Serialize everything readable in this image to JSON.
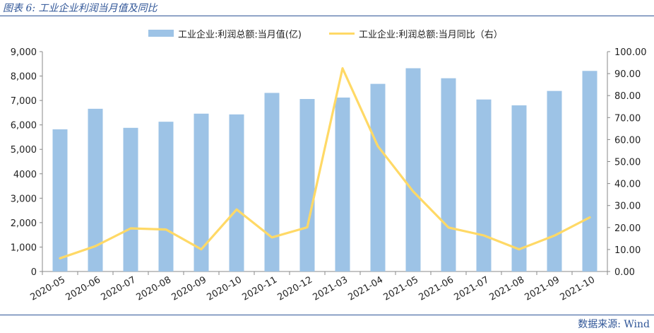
{
  "figure": {
    "title": "图表 6:  工业企业利润当月值及同比",
    "source": "数据来源: Wind"
  },
  "colors": {
    "bar": "#9dc3e6",
    "line": "#ffd966",
    "accent": "#2f5597"
  },
  "chart_data": {
    "type": "bar",
    "categories": [
      "2020-05",
      "2020-06",
      "2020-07",
      "2020-08",
      "2020-09",
      "2020-10",
      "2020-11",
      "2020-12",
      "2021-03",
      "2021-04",
      "2021-05",
      "2021-06",
      "2021-07",
      "2021-08",
      "2021-09",
      "2021-10"
    ],
    "series": [
      {
        "name": "工业企业:利润总额:当月值(亿)",
        "type": "bar",
        "axis": "left",
        "values": [
          5820,
          6660,
          5880,
          6130,
          6460,
          6430,
          7310,
          7060,
          7120,
          7680,
          8320,
          7910,
          7040,
          6800,
          7390,
          8210
        ]
      },
      {
        "name": "工业企业:利润总额:当月同比（右）",
        "type": "line",
        "axis": "right",
        "values": [
          6.0,
          11.5,
          19.6,
          19.1,
          10.1,
          28.2,
          15.5,
          20.1,
          92.4,
          57.0,
          36.4,
          20.0,
          16.4,
          10.1,
          16.3,
          24.6
        ]
      }
    ],
    "y_left": {
      "min": 0,
      "max": 9000,
      "step": 1000,
      "tick_labels": [
        "0",
        "1,000",
        "2,000",
        "3,000",
        "4000",
        "5,000",
        "6,000",
        "7,000",
        "8,000",
        "9,000"
      ]
    },
    "y_right": {
      "min": 0,
      "max": 100,
      "step": 10,
      "tick_labels": [
        "0.00",
        "10.00",
        "20.00",
        "30.00",
        "40.00",
        "50.00",
        "60.00",
        "70.00",
        "80.00",
        "90.00",
        "100.00"
      ]
    },
    "grid": false,
    "legend_position": "top-center"
  }
}
